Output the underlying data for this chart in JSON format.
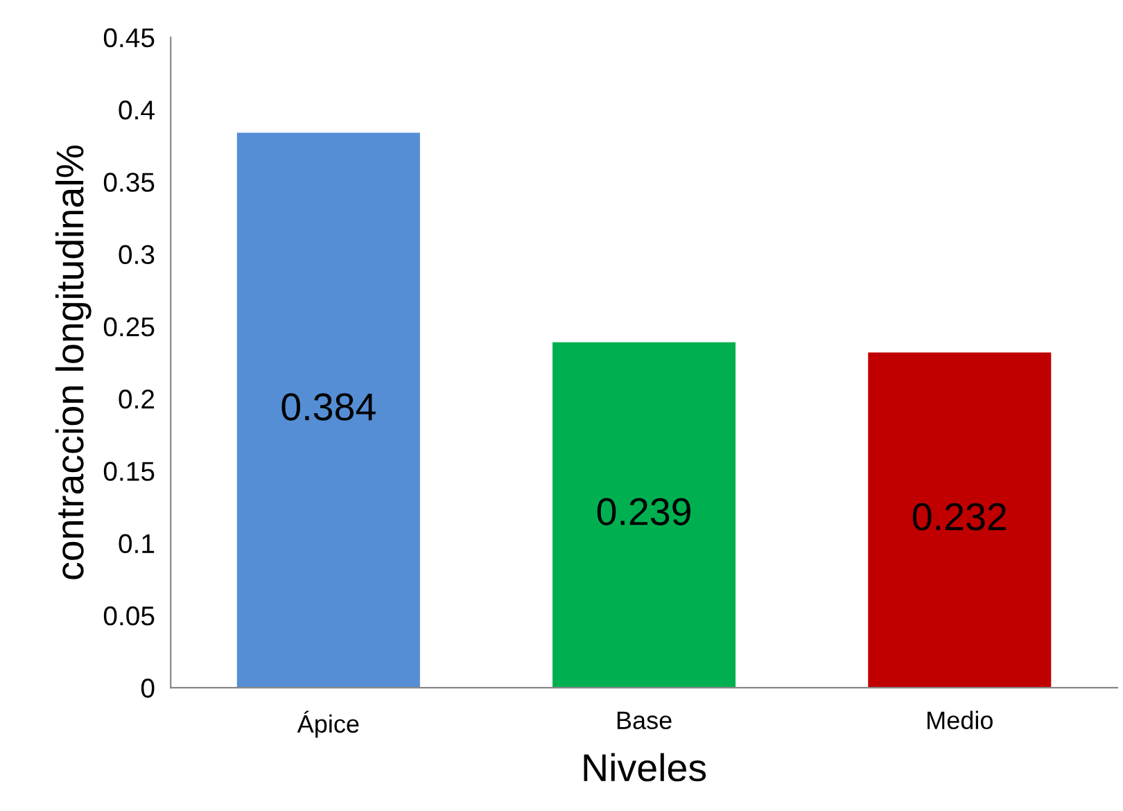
{
  "chart_data": {
    "type": "bar",
    "xlabel": "Niveles",
    "ylabel": "contraccion longitudinal%",
    "categories": [
      "Ápice",
      "Base",
      "Medio"
    ],
    "values": [
      0.384,
      0.239,
      0.232
    ],
    "colors": [
      "#558ed5",
      "#00b050",
      "#c00000"
    ],
    "ylim": [
      0,
      0.45
    ],
    "yticks": [
      0,
      0.05,
      0.1,
      0.15,
      0.2,
      0.25,
      0.3,
      0.35,
      0.4,
      0.45
    ],
    "data_labels": true,
    "grid": false,
    "legend": false
  }
}
